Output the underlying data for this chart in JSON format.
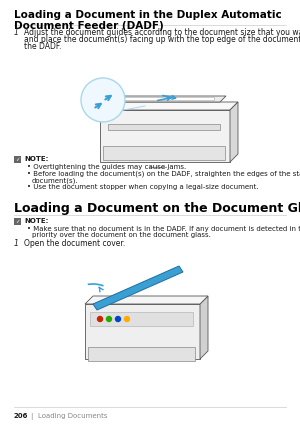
{
  "bg_color": "#ffffff",
  "text_color": "#1a1a1a",
  "bold_color": "#000000",
  "heading1_line1": "Loading a Document in the Duplex Automatic",
  "heading1_line2": "Document Feeder (DADF)",
  "step1_num": "1",
  "step1_lines": [
    "Adjust the document guides according to the document size that you want to load,",
    "and place the document(s) facing up with the top edge of the document(s) first into",
    "the DADF."
  ],
  "note1_label": "NOTE:",
  "note1_bullets": [
    "Overtightening the guides may cause jams.",
    "Before loading the document(s) on the DADF, straighten the edges of the stack of the",
    "document(s).",
    "Use the document stopper when copying a legal-size document."
  ],
  "heading2": "Loading a Document on the Document Glass",
  "note2_label": "NOTE:",
  "note2_bullets": [
    "Make sure that no document is in the DADF. If any document is detected in the DADF, it takes",
    "priority over the document on the document glass."
  ],
  "step2_num": "1",
  "step2_text": "Open the document cover.",
  "footer_page": "206",
  "footer_sep": "|",
  "footer_section": "Loading Documents",
  "accent_blue": "#3b9fd4",
  "light_blue_circle": "#a8d8ea",
  "printer_body": "#e8e8e8",
  "printer_dark": "#b0b0b0",
  "printer_outline": "#555555",
  "note_icon_color": "#555555",
  "heading_fontsize": 7.5,
  "body_fontsize": 5.5,
  "note_fontsize": 5.0,
  "footer_fontsize": 5.0
}
